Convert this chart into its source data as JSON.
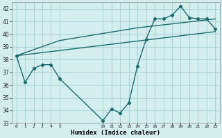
{
  "xlabel": "Humidex (Indice chaleur)",
  "ylabel": "",
  "background_color": "#d4eeee",
  "grid_color": "#aed4d4",
  "line_color": "#1a6b6b",
  "xlim": [
    -0.5,
    23.5
  ],
  "ylim": [
    33,
    42.5
  ],
  "yticks": [
    33,
    34,
    35,
    36,
    37,
    38,
    39,
    40,
    41,
    42
  ],
  "xtick_values": [
    0,
    1,
    2,
    3,
    4,
    5,
    10,
    11,
    12,
    13,
    14,
    15,
    16,
    17,
    18,
    19,
    20,
    21,
    22,
    23
  ],
  "xtick_labels": [
    "0",
    "1",
    "2",
    "3",
    "4",
    "5",
    "10",
    "11",
    "12",
    "13",
    "14",
    "15",
    "16",
    "17",
    "18",
    "19",
    "20",
    "21",
    "22",
    "23"
  ],
  "series_main": {
    "x": [
      0,
      1,
      2,
      3,
      4,
      5,
      10,
      11,
      12,
      13,
      14,
      15,
      16,
      17,
      18,
      19,
      20,
      21,
      22,
      23
    ],
    "y": [
      38.3,
      36.2,
      37.3,
      37.6,
      37.6,
      36.5,
      33.2,
      34.1,
      33.8,
      34.6,
      37.5,
      39.6,
      41.2,
      41.2,
      41.5,
      42.2,
      41.3,
      41.2,
      41.2,
      40.4
    ]
  },
  "series_trend1": {
    "x": [
      0,
      5,
      14,
      23
    ],
    "y": [
      38.3,
      39.5,
      40.5,
      41.2
    ]
  },
  "series_trend2": {
    "x": [
      0,
      23
    ],
    "y": [
      38.3,
      40.2
    ]
  }
}
